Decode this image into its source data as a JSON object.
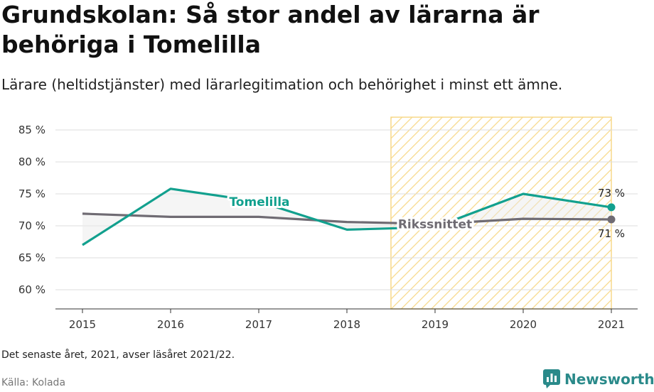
{
  "header": {
    "title": "Grundskolan: Så stor andel av lärarna är behöriga i Tomelilla",
    "subtitle": "Lärare (heltidstjänster) med lärarlegitimation och behörighet i minst ett ämne."
  },
  "footer": {
    "note": "Det senaste året, 2021, avser läsåret 2021/22.",
    "source": "Källa: Kolada",
    "logo_text": "Newsworthy"
  },
  "colors": {
    "tomelilla": "#12a08e",
    "riksnitt": "#6f6b73",
    "highlight_stroke": "#f7d98a",
    "grid": "#dddddd",
    "brand": "#2a8a8a"
  },
  "icons": {
    "logo": "bar-chart-icon"
  },
  "chart_data": {
    "type": "line",
    "x": [
      2015,
      2016,
      2017,
      2018,
      2019,
      2020,
      2021
    ],
    "ylim": [
      57,
      87
    ],
    "yticks": [
      60,
      65,
      70,
      75,
      80,
      85
    ],
    "ytick_labels": [
      "60 %",
      "65 %",
      "70 %",
      "75 %",
      "80 %",
      "85 %"
    ],
    "xtick_labels": [
      "2015",
      "2016",
      "2017",
      "2018",
      "2019",
      "2020",
      "2021"
    ],
    "highlight_range": [
      2018.5,
      2021
    ],
    "series": [
      {
        "name": "Tomelilla",
        "values": [
          67.0,
          75.8,
          73.8,
          69.4,
          69.8,
          75.0,
          72.9
        ],
        "end_label": "73 %"
      },
      {
        "name": "Rikssnittet",
        "values": [
          71.9,
          71.4,
          71.4,
          70.6,
          70.3,
          71.1,
          71.0
        ],
        "end_label": "71 %"
      }
    ],
    "grid": true,
    "legend": "inline labels"
  }
}
